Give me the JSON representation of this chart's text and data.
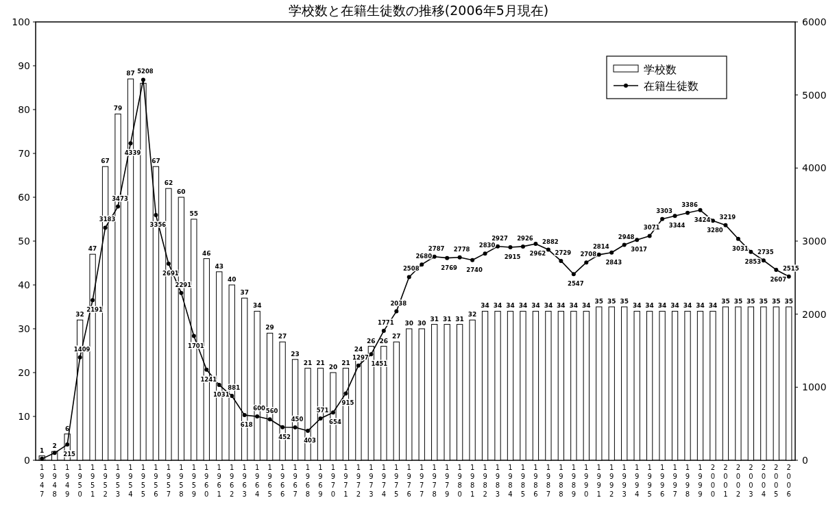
{
  "chart_data": {
    "type": "bar",
    "title": "学校数と在籍生徒数の推移(2006年5月現在)",
    "categories": [
      "1947",
      "1948",
      "1949",
      "1950",
      "1951",
      "1952",
      "1953",
      "1954",
      "1955",
      "1956",
      "1957",
      "1958",
      "1959",
      "1960",
      "1961",
      "1962",
      "1963",
      "1964",
      "1965",
      "1966",
      "1967",
      "1968",
      "1969",
      "1970",
      "1971",
      "1972",
      "1973",
      "1974",
      "1975",
      "1976",
      "1977",
      "1978",
      "1979",
      "1980",
      "1981",
      "1982",
      "1983",
      "1984",
      "1985",
      "1986",
      "1987",
      "1988",
      "1989",
      "1990",
      "1991",
      "1992",
      "1993",
      "1994",
      "1995",
      "1996",
      "1997",
      "1998",
      "1999",
      "2000",
      "2001",
      "2002",
      "2003",
      "2004",
      "2005",
      "2006"
    ],
    "series": [
      {
        "name": "学校数",
        "color": "#ffffff",
        "values": [
          1,
          2,
          6,
          32,
          47,
          67,
          79,
          87,
          86,
          67,
          62,
          60,
          55,
          46,
          43,
          40,
          37,
          34,
          29,
          27,
          23,
          21,
          21,
          20,
          21,
          24,
          26,
          26,
          27,
          30,
          30,
          31,
          31,
          31,
          32,
          34,
          34,
          34,
          34,
          34,
          34,
          34,
          34,
          34,
          35,
          35,
          35,
          34,
          34,
          34,
          34,
          34,
          34,
          34,
          35,
          35,
          35,
          35,
          35,
          35
        ],
        "value_labels": [
          "1",
          "2",
          "6",
          "32",
          "47",
          "67",
          "79",
          "87",
          null,
          "67",
          "62",
          "60",
          "55",
          "46",
          "43",
          "40",
          "37",
          "34",
          "29",
          "27",
          "23",
          "21",
          "21",
          "20",
          "21",
          "24",
          "26",
          "26",
          "27",
          "30",
          "30",
          "31",
          "31",
          "31",
          "32",
          "34",
          "34",
          "34",
          "34",
          "34",
          "34",
          "34",
          "34",
          "34",
          "35",
          "35",
          "35",
          "34",
          "34",
          "34",
          "34",
          "34",
          "34",
          "34",
          "35",
          "35",
          "35",
          "35",
          "35",
          "35"
        ]
      },
      {
        "name": "在籍生徒数",
        "type": "line",
        "axis": "y2",
        "color": "#000000",
        "values": [
          20,
          100,
          215,
          1409,
          2191,
          3183,
          3473,
          4339,
          5208,
          3356,
          2691,
          2291,
          1701,
          1241,
          1031,
          881,
          618,
          600,
          560,
          452,
          450,
          403,
          571,
          654,
          915,
          1297,
          1451,
          1771,
          2038,
          2508,
          2680,
          2787,
          2769,
          2778,
          2740,
          2830,
          2927,
          2915,
          2926,
          2962,
          2882,
          2729,
          2547,
          2708,
          2814,
          2843,
          2948,
          3017,
          3071,
          3303,
          3344,
          3386,
          3424,
          3280,
          3219,
          3031,
          2853,
          2735,
          2607,
          2515
        ],
        "value_labels": [
          null,
          null,
          "215",
          "1409",
          "2191",
          "3183",
          "3473",
          "4339",
          "5208",
          "3356",
          "2691",
          "2291",
          "1701",
          "1241",
          "1031",
          "881",
          "618",
          "600",
          "560",
          "452",
          "450",
          "403",
          "571",
          "654",
          "915",
          "1297",
          "1451",
          "1771",
          "2038",
          "2508",
          "2680",
          "2787",
          "2769",
          "2778",
          "2740",
          "2830",
          "2927",
          "2915",
          "2926",
          "2962",
          "2882",
          "2729",
          "2547",
          "2708",
          "2814",
          "2843",
          "2948",
          "3017",
          "3071",
          "3303",
          "3344",
          "3386",
          "3424",
          "3280",
          "3219",
          "3031",
          "2853",
          "2735",
          "2607",
          "2515"
        ]
      }
    ],
    "ylim": [
      0,
      100
    ],
    "yticks": [
      0,
      10,
      20,
      30,
      40,
      50,
      60,
      70,
      80,
      90,
      100
    ],
    "y2lim": [
      0,
      6000
    ],
    "y2ticks": [
      0,
      1000,
      2000,
      3000,
      4000,
      5000,
      6000
    ],
    "marker": "circle",
    "legend": "top right",
    "grid": false
  }
}
